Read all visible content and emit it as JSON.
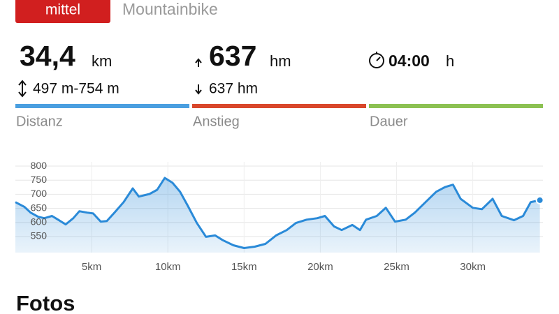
{
  "header": {
    "difficulty": "mittel",
    "sport": "Mountainbike"
  },
  "stats": [
    {
      "value": "34,4",
      "unit": "km",
      "sub": "497 m-754 m",
      "label": "Distanz",
      "color": "#4a9fe0"
    },
    {
      "value": "637",
      "unit": "hm",
      "sub": "637 hm",
      "label": "Anstieg",
      "color": "#d9472b"
    },
    {
      "value": "04:00",
      "unit": "h",
      "label": "Dauer",
      "color": "#8cc152"
    }
  ],
  "elevation_chart": {
    "type": "area",
    "x": [
      0,
      0.6,
      1.0,
      1.5,
      1.9,
      2.4,
      2.8,
      3.3,
      3.8,
      4.2,
      4.7,
      5.1,
      5.6,
      6.0,
      6.5,
      7.1,
      7.7,
      8.1,
      8.8,
      9.3,
      9.8,
      10.3,
      10.8,
      11.3,
      11.9,
      12.5,
      13.1,
      13.6,
      14.3,
      15.0,
      15.7,
      16.4,
      17.1,
      17.8,
      18.4,
      19.1,
      19.8,
      20.3,
      20.9,
      21.4,
      22.1,
      22.6,
      23.0,
      23.7,
      24.3,
      24.9,
      25.6,
      26.2,
      26.9,
      27.6,
      28.2,
      28.7,
      29.2,
      30.0,
      30.6,
      31.3,
      31.9,
      32.7,
      33.3,
      33.8,
      34.4
    ],
    "values": [
      672,
      655,
      635,
      620,
      615,
      623,
      610,
      593,
      615,
      640,
      635,
      632,
      603,
      605,
      635,
      672,
      721,
      692,
      701,
      716,
      758,
      741,
      709,
      660,
      598,
      549,
      554,
      537,
      519,
      509,
      514,
      524,
      554,
      573,
      598,
      610,
      615,
      623,
      586,
      573,
      591,
      573,
      610,
      623,
      652,
      603,
      610,
      635,
      672,
      709,
      726,
      734,
      684,
      652,
      647,
      684,
      623,
      608,
      623,
      672,
      679
    ],
    "xlim": [
      0,
      34.6
    ],
    "ylim": [
      493,
      815
    ],
    "yticks": [
      550,
      600,
      650,
      700,
      750,
      800
    ],
    "xticks": [
      {
        "value": 5,
        "label": "5km"
      },
      {
        "value": 10,
        "label": "10km"
      },
      {
        "value": 15,
        "label": "15km"
      },
      {
        "value": 20,
        "label": "20km"
      },
      {
        "value": 25,
        "label": "25km"
      },
      {
        "value": 30,
        "label": "30km"
      }
    ],
    "color": "#2a8ad8",
    "grid": true
  },
  "section_title": "Fotos"
}
